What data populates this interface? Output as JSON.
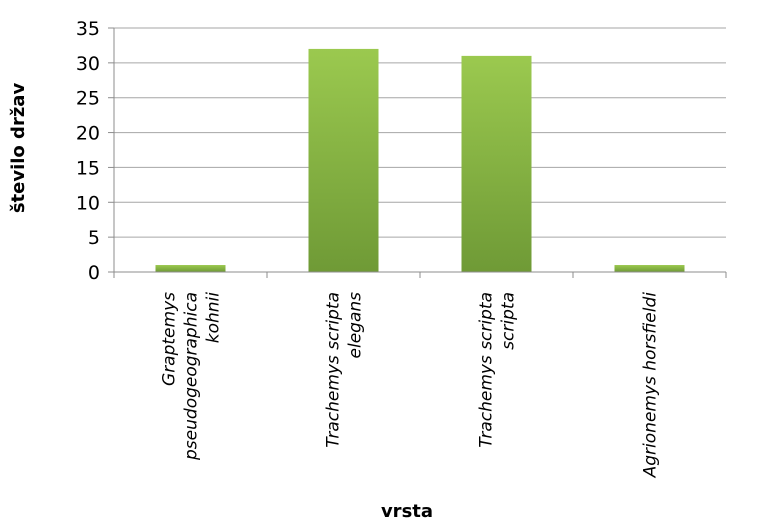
{
  "chart_data": {
    "type": "bar",
    "categories": [
      [
        "Graptemys",
        "pseudogeographica",
        "kohnii"
      ],
      [
        "Trachemys scripta",
        "elegans"
      ],
      [
        "Trachemys scripta",
        "scripta"
      ],
      [
        "Agrionemys horsfieldi"
      ]
    ],
    "values": [
      1,
      32,
      31,
      1
    ],
    "xlabel": "vrsta",
    "ylabel": "število držav",
    "ylim": [
      0,
      35
    ],
    "yticks": [
      0,
      5,
      10,
      15,
      20,
      25,
      30,
      35
    ],
    "grid": true,
    "legend": "none",
    "colors": {
      "bar_light": "#9bc94f",
      "bar_dark": "#6f9a36",
      "grid": "#a6a6a6",
      "axis": "#8c8c8c"
    }
  }
}
